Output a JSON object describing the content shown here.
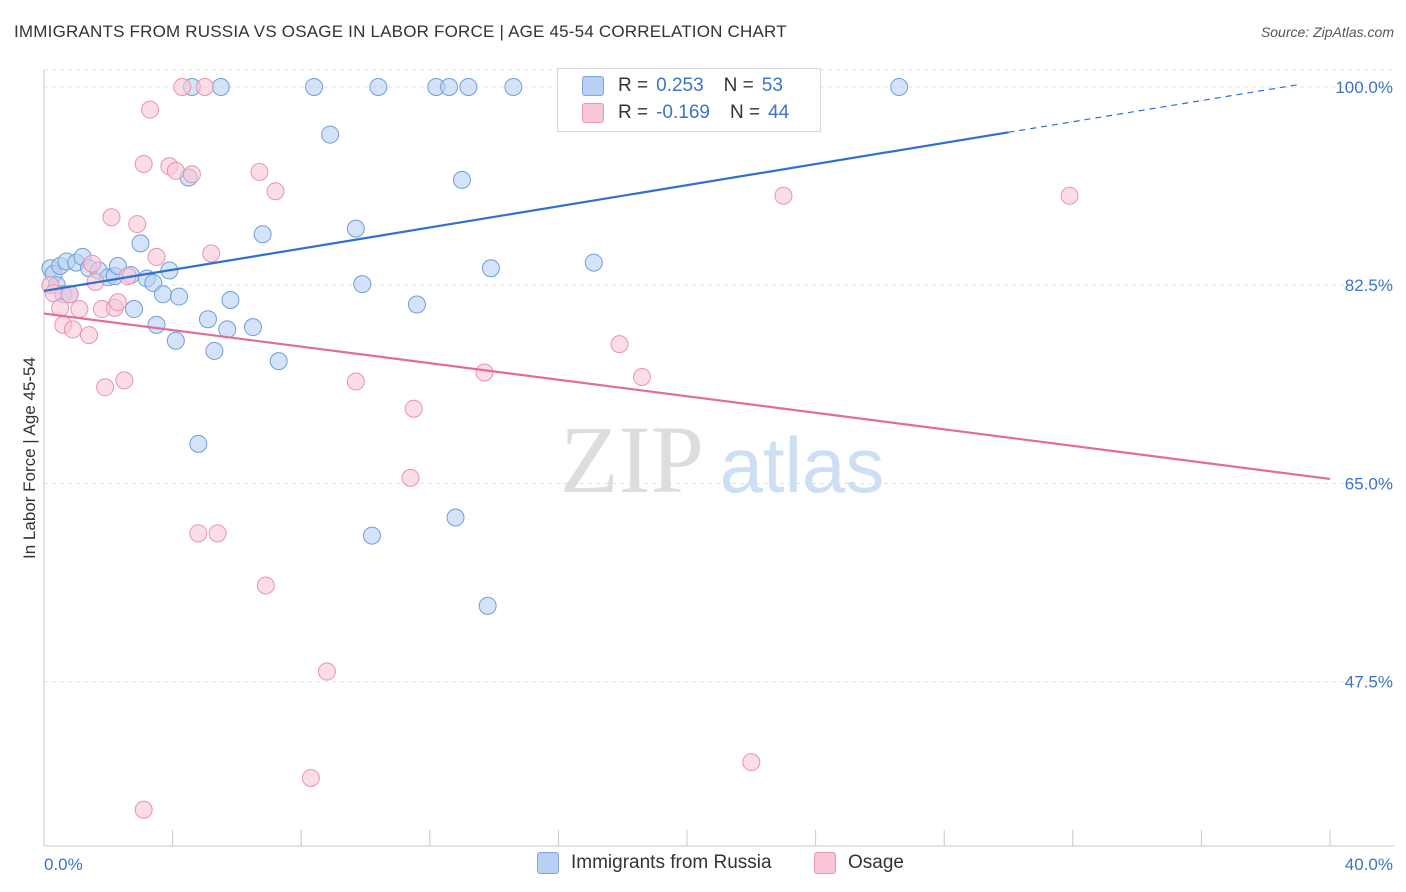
{
  "header": {
    "title": "IMMIGRANTS FROM RUSSIA VS OSAGE IN LABOR FORCE | AGE 45-54 CORRELATION CHART",
    "source": "Source: ZipAtlas.com"
  },
  "legend": {
    "series1": {
      "r_label": "R =",
      "r_value": "0.253",
      "n_label": "N =",
      "n_value": "53"
    },
    "series2": {
      "r_label": "R =",
      "r_value": "-0.169",
      "n_label": "N =",
      "n_value": "44"
    }
  },
  "watermark": {
    "zip": "ZIP",
    "atlas": "atlas"
  },
  "colors": {
    "blue_fill": "#b9d0f3",
    "blue_stroke": "#6f9edb",
    "blue_line": "#2f6fd0",
    "pink_fill": "#f8c6d5",
    "pink_stroke": "#ea93b0",
    "pink_line": "#e46b96",
    "tick_label": "#3a75c9",
    "grid": "#e2e2e2"
  },
  "chart_data": {
    "type": "scatter",
    "title": "IMMIGRANTS FROM RUSSIA VS OSAGE IN LABOR FORCE | AGE 45-54 CORRELATION CHART",
    "xlabel": "",
    "ylabel": "In Labor Force | Age 45-54",
    "xlim": [
      0,
      40
    ],
    "ylim": [
      33,
      101.5
    ],
    "x_tick_labels": [
      {
        "value": 0,
        "label": "0.0%"
      },
      {
        "value": 40,
        "label": "40.0%"
      }
    ],
    "x_minor_ticks": [
      4,
      8,
      12,
      16,
      20,
      24,
      28,
      32,
      36,
      40
    ],
    "y_tick_labels": [
      {
        "value": 100,
        "label": "100.0%"
      },
      {
        "value": 82.5,
        "label": "82.5%"
      },
      {
        "value": 65,
        "label": "65.0%"
      },
      {
        "value": 47.5,
        "label": "47.5%"
      }
    ],
    "grid": true,
    "series": [
      {
        "name": "Immigrants from Russia",
        "color": "#6f9edb",
        "trend": {
          "x0": 0,
          "y0": 82.0,
          "x1": 30,
          "y1": 96.0,
          "dash_to_x": 39,
          "dash_to_y": 100.2
        },
        "points": [
          [
            0.2,
            84.0
          ],
          [
            0.3,
            83.5
          ],
          [
            0.4,
            82.5
          ],
          [
            0.5,
            84.2
          ],
          [
            0.6,
            81.7
          ],
          [
            0.7,
            84.6
          ],
          [
            0.8,
            81.7
          ],
          [
            1.0,
            84.5
          ],
          [
            1.2,
            85.0
          ],
          [
            1.4,
            84.0
          ],
          [
            1.7,
            83.8
          ],
          [
            2.0,
            83.2
          ],
          [
            2.2,
            83.3
          ],
          [
            2.3,
            84.2
          ],
          [
            2.7,
            83.4
          ],
          [
            2.8,
            80.4
          ],
          [
            3.0,
            86.2
          ],
          [
            3.2,
            83.1
          ],
          [
            3.4,
            82.7
          ],
          [
            3.5,
            79.0
          ],
          [
            3.7,
            81.7
          ],
          [
            3.9,
            83.8
          ],
          [
            4.1,
            77.6
          ],
          [
            4.2,
            81.5
          ],
          [
            4.5,
            92.0
          ],
          [
            4.8,
            68.5
          ],
          [
            4.6,
            100.0
          ],
          [
            5.1,
            79.5
          ],
          [
            5.3,
            76.7
          ],
          [
            5.7,
            78.6
          ],
          [
            5.8,
            81.2
          ],
          [
            6.5,
            78.8
          ],
          [
            6.8,
            87.0
          ],
          [
            7.3,
            75.8
          ],
          [
            8.4,
            100.0
          ],
          [
            8.9,
            95.8
          ],
          [
            9.7,
            87.5
          ],
          [
            9.9,
            82.6
          ],
          [
            10.2,
            60.4
          ],
          [
            10.4,
            100.0
          ],
          [
            11.6,
            80.8
          ],
          [
            12.2,
            100.0
          ],
          [
            12.6,
            100.0
          ],
          [
            12.8,
            62.0
          ],
          [
            13.0,
            91.8
          ],
          [
            13.2,
            100.0
          ],
          [
            13.8,
            54.2
          ],
          [
            13.9,
            84.0
          ],
          [
            14.6,
            100.0
          ],
          [
            17.1,
            84.5
          ],
          [
            21.4,
            98.6
          ],
          [
            5.5,
            100.0
          ],
          [
            26.6,
            100.0
          ]
        ]
      },
      {
        "name": "Osage",
        "color": "#ea93b0",
        "trend": {
          "x0": 0,
          "y0": 80.0,
          "x1": 40,
          "y1": 65.4
        },
        "points": [
          [
            0.2,
            82.5
          ],
          [
            0.3,
            81.8
          ],
          [
            0.5,
            80.5
          ],
          [
            0.6,
            79.0
          ],
          [
            0.8,
            81.7
          ],
          [
            0.9,
            78.6
          ],
          [
            1.1,
            80.4
          ],
          [
            1.4,
            78.1
          ],
          [
            1.5,
            84.4
          ],
          [
            1.6,
            82.8
          ],
          [
            1.8,
            80.4
          ],
          [
            1.9,
            73.5
          ],
          [
            2.1,
            88.5
          ],
          [
            2.2,
            80.5
          ],
          [
            2.3,
            81.0
          ],
          [
            2.5,
            74.1
          ],
          [
            2.6,
            83.3
          ],
          [
            2.9,
            87.9
          ],
          [
            3.1,
            93.2
          ],
          [
            3.3,
            98.0
          ],
          [
            3.5,
            85.0
          ],
          [
            3.9,
            93.0
          ],
          [
            4.1,
            92.6
          ],
          [
            4.3,
            100.0
          ],
          [
            4.6,
            92.3
          ],
          [
            4.8,
            60.6
          ],
          [
            5.0,
            100.0
          ],
          [
            5.2,
            85.3
          ],
          [
            5.4,
            60.6
          ],
          [
            6.7,
            92.5
          ],
          [
            6.9,
            56.0
          ],
          [
            7.2,
            90.8
          ],
          [
            8.8,
            48.4
          ],
          [
            8.3,
            39.0
          ],
          [
            3.1,
            36.2
          ],
          [
            9.7,
            74.0
          ],
          [
            11.5,
            71.6
          ],
          [
            11.4,
            65.5
          ],
          [
            13.7,
            74.8
          ],
          [
            17.9,
            77.3
          ],
          [
            18.6,
            74.4
          ],
          [
            23.0,
            90.4
          ],
          [
            22.0,
            40.4
          ],
          [
            31.9,
            90.4
          ]
        ]
      }
    ]
  },
  "bottom_legend": {
    "item1": "Immigrants from Russia",
    "item2": "Osage"
  }
}
